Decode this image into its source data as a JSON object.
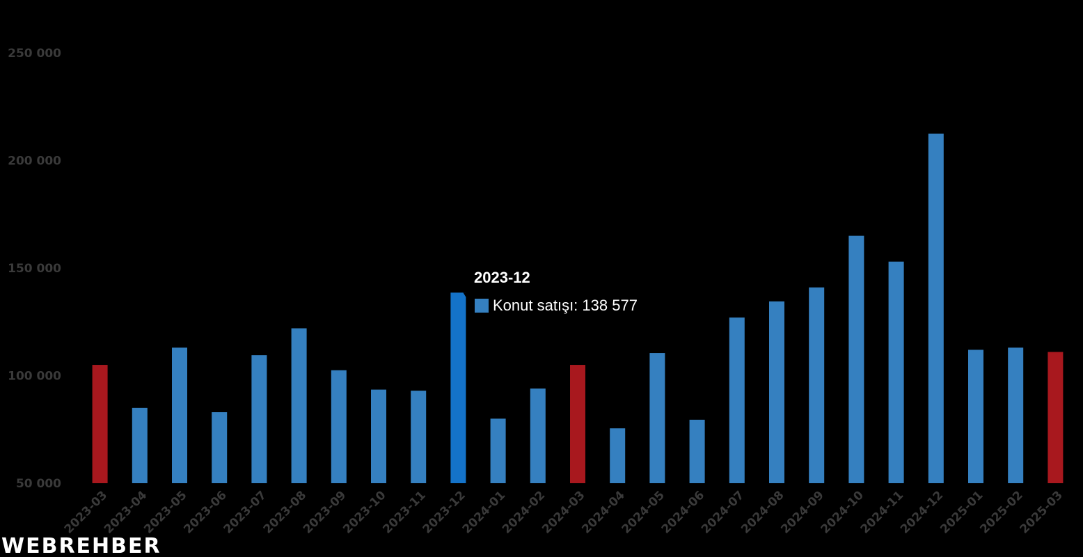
{
  "chart_data": {
    "type": "bar",
    "categories": [
      "2023-03",
      "2023-04",
      "2023-05",
      "2023-06",
      "2023-07",
      "2023-08",
      "2023-09",
      "2023-10",
      "2023-11",
      "2023-12",
      "2024-01",
      "2024-02",
      "2024-03",
      "2024-04",
      "2024-05",
      "2024-06",
      "2024-07",
      "2024-08",
      "2024-09",
      "2024-10",
      "2024-11",
      "2024-12",
      "2025-01",
      "2025-02",
      "2025-03"
    ],
    "series": [
      {
        "name": "Konut satışı",
        "values": [
          105000,
          85000,
          113000,
          83000,
          109500,
          122000,
          102500,
          93500,
          93000,
          138577,
          80000,
          94000,
          105000,
          75500,
          110500,
          79500,
          127000,
          134500,
          141000,
          165000,
          153000,
          212500,
          112000,
          113000,
          111000
        ]
      }
    ],
    "highlighted_categories": [
      "2023-03",
      "2024-03",
      "2025-03"
    ],
    "hovered_category": "2023-12",
    "ylim": [
      50000,
      250000
    ],
    "yticks": [
      50000,
      100000,
      150000,
      200000,
      250000
    ],
    "ytick_labels": [
      "50 000",
      "100 000",
      "150 000",
      "200 000",
      "250 000"
    ],
    "grid": false,
    "title": "",
    "xlabel": "",
    "ylabel": ""
  },
  "colors": {
    "background": "#000000",
    "bar": "#3580c0",
    "bar_highlight": "#a8181e",
    "bar_hover": "#1473c9",
    "tick_text": "#3a3a3a",
    "tooltip_text": "#ffffff",
    "logo_dot": "#d01c24"
  },
  "tooltip": {
    "title": "2023-12",
    "series_label": "Konut satışı: 138 577"
  },
  "logo": {
    "text": "WEBREHBER"
  }
}
